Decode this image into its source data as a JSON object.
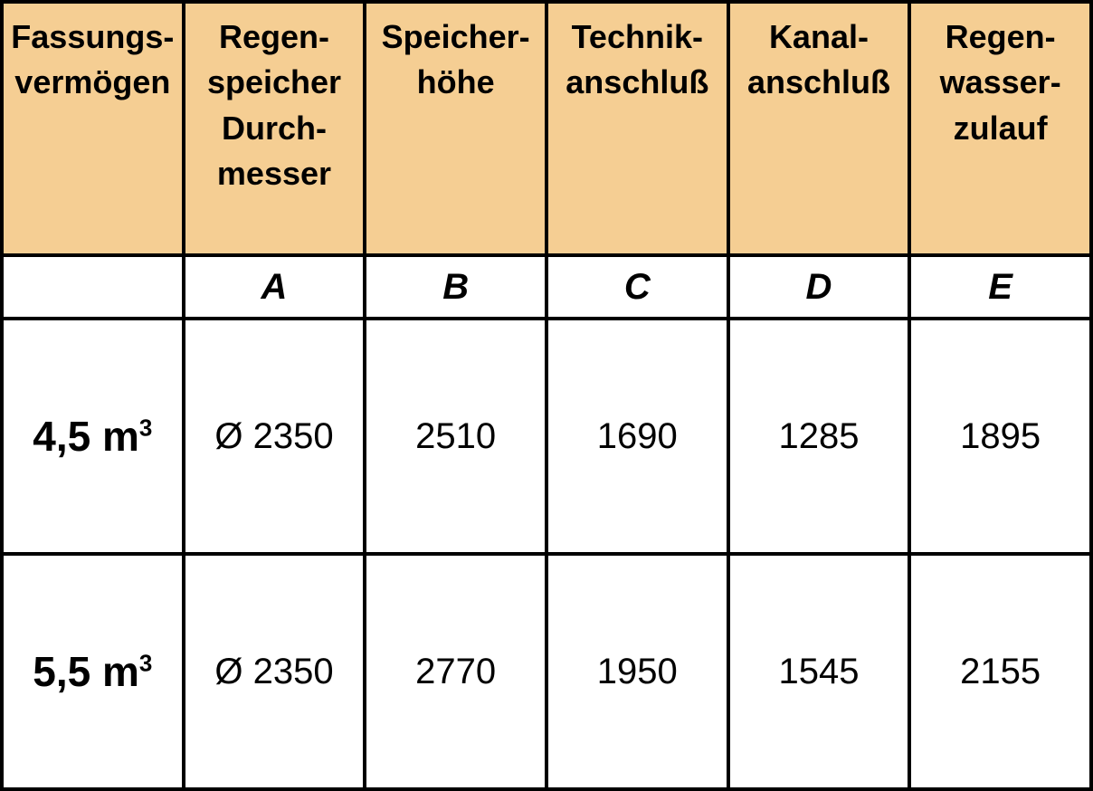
{
  "table": {
    "header_bg": "#f5ce93",
    "border_color": "#000000",
    "columns": [
      {
        "header_line1": "Fassungs-",
        "header_line2": "vermögen",
        "header_line3": "",
        "header_line4": "",
        "letter": ""
      },
      {
        "header_line1": "Regen-",
        "header_line2": "speicher",
        "header_line3": "Durch-",
        "header_line4": "messer",
        "letter": "A"
      },
      {
        "header_line1": "Speicher-",
        "header_line2": "höhe",
        "header_line3": "",
        "header_line4": "",
        "letter": "B"
      },
      {
        "header_line1": "Technik-",
        "header_line2": "anschluß",
        "header_line3": "",
        "header_line4": "",
        "letter": "C"
      },
      {
        "header_line1": "Kanal-",
        "header_line2": "anschluß",
        "header_line3": "",
        "header_line4": "",
        "letter": "D"
      },
      {
        "header_line1": "Regen-",
        "header_line2": "wasser-",
        "header_line3": "zulauf",
        "header_line4": "",
        "letter": "E"
      }
    ],
    "rows": [
      {
        "label_main": "4,5 m",
        "label_sup": "3",
        "cells": [
          "Ø 2350",
          "2510",
          "1690",
          "1285",
          "1895"
        ]
      },
      {
        "label_main": "5,5 m",
        "label_sup": "3",
        "cells": [
          "Ø 2350",
          "2770",
          "1950",
          "1545",
          "2155"
        ]
      }
    ]
  }
}
